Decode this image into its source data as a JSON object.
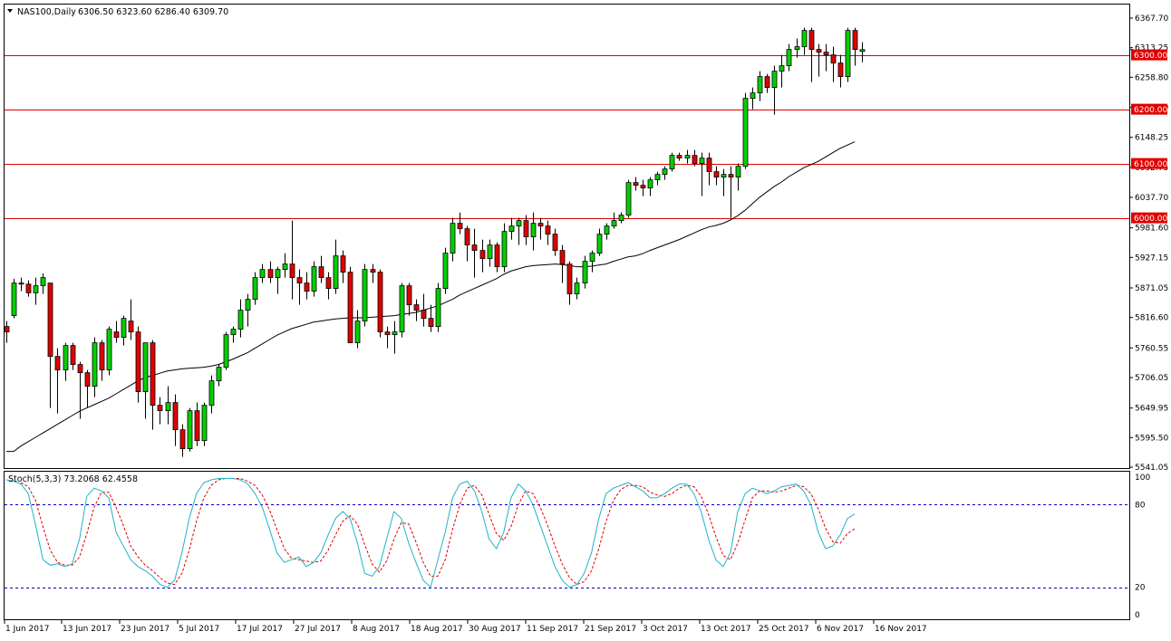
{
  "chart_data": {
    "type": "candlestick",
    "symbol_label": "NAS100,Daily",
    "ohlc_label": "6306.50 6323.60 6286.40 6309.70",
    "y_ticks": [
      "6367.70",
      "6313.25",
      "6258.80",
      "6203.70",
      "6148.25",
      "6092.75",
      "6037.70",
      "5981.60",
      "5927.15",
      "5871.05",
      "5816.60",
      "5760.55",
      "5706.05",
      "5649.95",
      "5595.50",
      "5541.05"
    ],
    "last_price_label": "6309.70",
    "horizontal_levels": [
      {
        "value": 6300,
        "label": "6300.00"
      },
      {
        "value": 6200,
        "label": "6200.00"
      },
      {
        "value": 6100,
        "label": "6100.00"
      },
      {
        "value": 6000,
        "label": "6000.00"
      }
    ],
    "x_tick_labels": [
      "1 Jun 2017",
      "13 Jun 2017",
      "23 Jun 2017",
      "5 Jul 2017",
      "17 Jul 2017",
      "27 Jul 2017",
      "8 Aug 2017",
      "18 Aug 2017",
      "30 Aug 2017",
      "11 Sep 2017",
      "21 Sep 2017",
      "3 Oct 2017",
      "13 Oct 2017",
      "25 Oct 2017",
      "6 Nov 2017",
      "16 Nov 2017"
    ],
    "ohlc": [
      [
        5800,
        5810,
        5770,
        5790
      ],
      [
        5820,
        5888,
        5815,
        5880
      ],
      [
        5880,
        5890,
        5865,
        5878
      ],
      [
        5878,
        5885,
        5855,
        5862
      ],
      [
        5862,
        5890,
        5840,
        5875
      ],
      [
        5875,
        5898,
        5860,
        5890
      ],
      [
        5880,
        5880,
        5650,
        5745
      ],
      [
        5745,
        5760,
        5640,
        5720
      ],
      [
        5720,
        5770,
        5700,
        5765
      ],
      [
        5765,
        5770,
        5720,
        5730
      ],
      [
        5730,
        5735,
        5630,
        5715
      ],
      [
        5715,
        5720,
        5650,
        5690
      ],
      [
        5690,
        5780,
        5670,
        5770
      ],
      [
        5770,
        5775,
        5700,
        5720
      ],
      [
        5720,
        5800,
        5710,
        5795
      ],
      [
        5790,
        5810,
        5770,
        5780
      ],
      [
        5780,
        5820,
        5765,
        5815
      ],
      [
        5810,
        5850,
        5775,
        5790
      ],
      [
        5790,
        5800,
        5660,
        5680
      ],
      [
        5680,
        5770,
        5630,
        5770
      ],
      [
        5770,
        5775,
        5610,
        5655
      ],
      [
        5655,
        5670,
        5620,
        5645
      ],
      [
        5645,
        5690,
        5620,
        5660
      ],
      [
        5660,
        5675,
        5580,
        5610
      ],
      [
        5610,
        5620,
        5560,
        5575
      ],
      [
        5575,
        5650,
        5570,
        5645
      ],
      [
        5645,
        5660,
        5580,
        5590
      ],
      [
        5590,
        5660,
        5580,
        5655
      ],
      [
        5655,
        5710,
        5640,
        5700
      ],
      [
        5700,
        5730,
        5690,
        5725
      ],
      [
        5725,
        5790,
        5720,
        5785
      ],
      [
        5785,
        5800,
        5770,
        5795
      ],
      [
        5795,
        5850,
        5780,
        5830
      ],
      [
        5830,
        5860,
        5800,
        5850
      ],
      [
        5850,
        5900,
        5840,
        5890
      ],
      [
        5890,
        5915,
        5880,
        5905
      ],
      [
        5905,
        5920,
        5880,
        5890
      ],
      [
        5890,
        5910,
        5860,
        5905
      ],
      [
        5905,
        5935,
        5890,
        5915
      ],
      [
        5915,
        5995,
        5850,
        5890
      ],
      [
        5890,
        5905,
        5840,
        5880
      ],
      [
        5880,
        5900,
        5850,
        5865
      ],
      [
        5865,
        5920,
        5855,
        5910
      ],
      [
        5910,
        5930,
        5880,
        5890
      ],
      [
        5890,
        5900,
        5850,
        5870
      ],
      [
        5870,
        5960,
        5860,
        5930
      ],
      [
        5930,
        5940,
        5880,
        5900
      ],
      [
        5900,
        5910,
        5770,
        5770
      ],
      [
        5770,
        5830,
        5760,
        5810
      ],
      [
        5810,
        5915,
        5800,
        5905
      ],
      [
        5905,
        5915,
        5880,
        5900
      ],
      [
        5900,
        5905,
        5780,
        5790
      ],
      [
        5790,
        5800,
        5760,
        5785
      ],
      [
        5785,
        5810,
        5750,
        5790
      ],
      [
        5790,
        5880,
        5780,
        5875
      ],
      [
        5875,
        5880,
        5820,
        5840
      ],
      [
        5840,
        5850,
        5810,
        5830
      ],
      [
        5830,
        5860,
        5800,
        5815
      ],
      [
        5815,
        5840,
        5790,
        5800
      ],
      [
        5800,
        5880,
        5790,
        5870
      ],
      [
        5870,
        5945,
        5860,
        5935
      ],
      [
        5935,
        6000,
        5920,
        5990
      ],
      [
        5990,
        6010,
        5970,
        5980
      ],
      [
        5980,
        5985,
        5920,
        5950
      ],
      [
        5950,
        5980,
        5890,
        5940
      ],
      [
        5940,
        5960,
        5900,
        5925
      ],
      [
        5925,
        5960,
        5910,
        5950
      ],
      [
        5950,
        5955,
        5900,
        5910
      ],
      [
        5910,
        5990,
        5900,
        5975
      ],
      [
        5975,
        6000,
        5960,
        5985
      ],
      [
        5985,
        6000,
        5950,
        5995
      ],
      [
        5995,
        6005,
        5950,
        5965
      ],
      [
        5965,
        6010,
        5940,
        5990
      ],
      [
        5990,
        6000,
        5960,
        5985
      ],
      [
        5985,
        5995,
        5950,
        5970
      ],
      [
        5970,
        5980,
        5930,
        5940
      ],
      [
        5940,
        5950,
        5880,
        5915
      ],
      [
        5915,
        5920,
        5840,
        5860
      ],
      [
        5860,
        5890,
        5850,
        5880
      ],
      [
        5880,
        5930,
        5870,
        5920
      ],
      [
        5920,
        5940,
        5900,
        5935
      ],
      [
        5935,
        5980,
        5930,
        5970
      ],
      [
        5970,
        5990,
        5960,
        5985
      ],
      [
        5985,
        6010,
        5980,
        5995
      ],
      [
        5995,
        6010,
        5990,
        6005
      ],
      [
        6005,
        6070,
        6000,
        6065
      ],
      [
        6065,
        6075,
        6050,
        6060
      ],
      [
        6060,
        6070,
        6040,
        6055
      ],
      [
        6055,
        6075,
        6040,
        6070
      ],
      [
        6070,
        6085,
        6060,
        6080
      ],
      [
        6080,
        6095,
        6070,
        6090
      ],
      [
        6090,
        6120,
        6085,
        6115
      ],
      [
        6115,
        6120,
        6105,
        6110
      ],
      [
        6110,
        6125,
        6100,
        6115
      ],
      [
        6115,
        6125,
        6095,
        6100
      ],
      [
        6100,
        6120,
        6040,
        6110
      ],
      [
        6110,
        6120,
        6060,
        6085
      ],
      [
        6085,
        6095,
        6060,
        6075
      ],
      [
        6075,
        6090,
        6040,
        6080
      ],
      [
        6080,
        6095,
        6000,
        6075
      ],
      [
        6075,
        6100,
        6050,
        6095
      ],
      [
        6095,
        6230,
        6090,
        6220
      ],
      [
        6220,
        6240,
        6200,
        6230
      ],
      [
        6230,
        6270,
        6215,
        6260
      ],
      [
        6260,
        6265,
        6230,
        6240
      ],
      [
        6240,
        6280,
        6190,
        6270
      ],
      [
        6270,
        6300,
        6240,
        6280
      ],
      [
        6280,
        6320,
        6270,
        6310
      ],
      [
        6310,
        6330,
        6295,
        6315
      ],
      [
        6315,
        6350,
        6300,
        6345
      ],
      [
        6345,
        6350,
        6250,
        6310
      ],
      [
        6310,
        6320,
        6260,
        6305
      ],
      [
        6305,
        6320,
        6270,
        6300
      ],
      [
        6300,
        6315,
        6250,
        6285
      ],
      [
        6285,
        6300,
        6240,
        6260
      ],
      [
        6260,
        6350,
        6250,
        6345
      ],
      [
        6345,
        6350,
        6280,
        6310
      ],
      [
        6306.5,
        6323.6,
        6286.4,
        6309.7
      ]
    ],
    "ma": [
      5570,
      5570,
      5580,
      5588,
      5596,
      5604,
      5612,
      5620,
      5628,
      5636,
      5644,
      5650,
      5656,
      5662,
      5668,
      5676,
      5684,
      5692,
      5700,
      5706,
      5710,
      5714,
      5718,
      5720,
      5722,
      5723,
      5724,
      5725,
      5727,
      5730,
      5735,
      5740,
      5746,
      5752,
      5760,
      5768,
      5776,
      5784,
      5790,
      5796,
      5800,
      5804,
      5808,
      5810,
      5812,
      5814,
      5815,
      5816,
      5816,
      5816,
      5817,
      5818,
      5819,
      5820,
      5822,
      5824,
      5826,
      5830,
      5834,
      5838,
      5844,
      5850,
      5858,
      5864,
      5870,
      5876,
      5882,
      5888,
      5896,
      5902,
      5906,
      5910,
      5912,
      5913,
      5914,
      5915,
      5914,
      5912,
      5910,
      5910,
      5911,
      5913,
      5915,
      5920,
      5924,
      5928,
      5930,
      5934,
      5940,
      5945,
      5950,
      5955,
      5960,
      5966,
      5972,
      5978,
      5983,
      5986,
      5990,
      5996,
      6004,
      6014,
      6026,
      6038,
      6048,
      6058,
      6066,
      6076,
      6084,
      6092,
      6098,
      6104,
      6112,
      6120,
      6128,
      6134,
      6140
    ],
    "stoch_label": "Stoch(5,3,3) 73.2068 62.4558",
    "stoch_levels": [
      20,
      80
    ],
    "stoch_ticks": [
      "100",
      "80",
      "20",
      "0"
    ],
    "stoch_k": [
      98,
      97,
      95,
      88,
      65,
      40,
      36,
      37,
      35,
      37,
      55,
      86,
      92,
      90,
      85,
      60,
      50,
      40,
      35,
      32,
      28,
      22,
      20,
      25,
      45,
      70,
      88,
      96,
      98,
      99,
      99,
      99,
      98,
      95,
      88,
      78,
      62,
      45,
      38,
      40,
      42,
      35,
      38,
      45,
      58,
      70,
      75,
      70,
      52,
      30,
      28,
      35,
      55,
      75,
      70,
      52,
      38,
      25,
      20,
      40,
      60,
      85,
      95,
      97,
      90,
      75,
      55,
      48,
      60,
      85,
      95,
      90,
      80,
      65,
      50,
      35,
      25,
      20,
      22,
      30,
      45,
      70,
      88,
      92,
      94,
      96,
      93,
      90,
      85,
      85,
      88,
      92,
      95,
      95,
      88,
      75,
      55,
      40,
      35,
      45,
      75,
      88,
      92,
      90,
      88,
      90,
      93,
      94,
      95,
      90,
      80,
      60,
      48,
      50,
      58,
      70,
      73.2
    ],
    "stoch_d": [
      null,
      null,
      96,
      93,
      83,
      64,
      47,
      38,
      36,
      36,
      42,
      59,
      78,
      89,
      89,
      78,
      65,
      50,
      42,
      36,
      32,
      27,
      23,
      22,
      30,
      47,
      68,
      85,
      94,
      98,
      99,
      99,
      99,
      97,
      94,
      87,
      76,
      62,
      48,
      41,
      40,
      39,
      38,
      39,
      47,
      58,
      68,
      72,
      66,
      51,
      37,
      31,
      39,
      55,
      67,
      66,
      53,
      38,
      28,
      28,
      40,
      62,
      80,
      92,
      94,
      87,
      73,
      59,
      54,
      64,
      80,
      90,
      88,
      78,
      65,
      50,
      37,
      27,
      22,
      24,
      32,
      48,
      68,
      83,
      91,
      94,
      94,
      93,
      89,
      87,
      86,
      88,
      92,
      94,
      93,
      86,
      73,
      57,
      43,
      40,
      52,
      69,
      85,
      90,
      90,
      89,
      90,
      92,
      94,
      93,
      88,
      77,
      63,
      53,
      52,
      59,
      62.5
    ]
  }
}
